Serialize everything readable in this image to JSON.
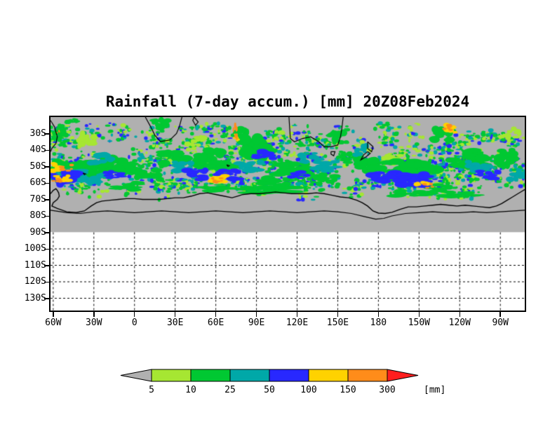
{
  "chart_data": {
    "type": "heatmap",
    "title": "Rainfall (7-day accum.) [mm] 20Z08Feb2024",
    "xlabel": "",
    "ylabel": "",
    "x_tick_labels": [
      "60W",
      "30W",
      "0",
      "30E",
      "60E",
      "90E",
      "120E",
      "150E",
      "180",
      "150W",
      "120W",
      "90W"
    ],
    "x_tick_lons": [
      -60,
      -30,
      0,
      30,
      60,
      90,
      120,
      150,
      180,
      210,
      240,
      270
    ],
    "y_tick_labels": [
      "30S",
      "40S",
      "50S",
      "60S",
      "70S",
      "80S",
      "90S",
      "100S",
      "110S",
      "120S",
      "130S"
    ],
    "y_tick_lats": [
      -30,
      -40,
      -50,
      -60,
      -70,
      -80,
      -90,
      -100,
      -110,
      -120,
      -130
    ],
    "lon_range": [
      -62,
      288
    ],
    "lat_range": [
      -137,
      -20
    ],
    "data_lat_limit": -90,
    "grid": "dashed",
    "background_fill": "#b0b0b0",
    "colorbar": {
      "levels": [
        "5",
        "10",
        "25",
        "50",
        "100",
        "150",
        "300"
      ],
      "unit": "[mm]",
      "palette": [
        "#b0b0b0",
        "#a6e632",
        "#00c832",
        "#00a8a8",
        "#2828ff",
        "#ffd200",
        "#ff8c1a",
        "#ff1e1e"
      ]
    },
    "grid_lats_white_region": [
      -100,
      -110,
      -120,
      -130
    ],
    "speckles": {
      "seed": 12,
      "clusters": 190,
      "band_dots": 380
    },
    "features": [
      [
        -45,
        -52,
        16,
        5,
        2,
        26
      ],
      [
        -48,
        -55,
        12,
        3,
        3,
        14
      ],
      [
        -52,
        -57,
        10,
        4,
        4,
        20
      ],
      [
        -60,
        -50,
        6,
        3,
        5,
        8
      ],
      [
        -50,
        -51,
        4,
        2,
        6,
        5
      ],
      [
        -53,
        -57,
        5,
        2,
        5,
        10
      ],
      [
        -57,
        -58,
        3,
        1.5,
        6,
        6
      ],
      [
        -55,
        -30,
        5,
        3,
        2,
        12
      ],
      [
        -57,
        -28.5,
        1.5,
        1,
        6,
        3
      ],
      [
        -45,
        -23,
        5,
        2,
        2,
        8
      ],
      [
        -35,
        -33,
        6,
        4,
        1,
        14
      ],
      [
        -30,
        -58,
        10,
        3,
        3,
        12
      ],
      [
        -25,
        -45,
        8,
        3,
        3,
        14
      ],
      [
        -12,
        -50,
        12,
        5,
        2,
        22
      ],
      [
        -15,
        -55,
        7,
        2,
        4,
        12
      ],
      [
        -5,
        -62,
        10,
        2.5,
        2,
        16
      ],
      [
        10,
        -55,
        9,
        3,
        2,
        14
      ],
      [
        20,
        -24,
        6,
        3.5,
        2,
        14
      ],
      [
        30,
        -45,
        10,
        4,
        2,
        18
      ],
      [
        35,
        -50,
        8,
        3,
        3,
        12
      ],
      [
        45,
        -35,
        6,
        3,
        1,
        10
      ],
      [
        45,
        -55,
        8,
        3,
        4,
        12
      ],
      [
        55,
        -45,
        10,
        5,
        2,
        20
      ],
      [
        60,
        -63,
        12,
        2,
        2,
        14
      ],
      [
        62,
        -58,
        7,
        2.5,
        5,
        12
      ],
      [
        61,
        -58.5,
        4,
        1.5,
        6,
        8
      ],
      [
        65,
        -50,
        10,
        3,
        2,
        14
      ],
      [
        70,
        -55,
        9,
        3,
        4,
        14
      ],
      [
        74,
        -28,
        1.6,
        4,
        6,
        6
      ],
      [
        76,
        -32,
        2.5,
        2,
        5,
        5
      ],
      [
        78,
        -30,
        5,
        4,
        2,
        12
      ],
      [
        85,
        -50,
        9,
        3,
        3,
        14
      ],
      [
        90,
        -38,
        10,
        6,
        2,
        22
      ],
      [
        95,
        -43,
        8,
        2.5,
        4,
        12
      ],
      [
        100,
        -64,
        20,
        2,
        2,
        20
      ],
      [
        105,
        -60,
        12,
        3,
        2,
        18
      ],
      [
        115,
        -52,
        12,
        4,
        2,
        20
      ],
      [
        120,
        -55,
        7,
        2,
        4,
        10
      ],
      [
        130,
        -45,
        7,
        3,
        3,
        12
      ],
      [
        140,
        -50,
        9,
        3,
        3,
        12
      ],
      [
        140,
        -58,
        8,
        3,
        2,
        12
      ],
      [
        150,
        -32,
        6,
        4,
        2,
        14
      ],
      [
        160,
        -45,
        8,
        3,
        2,
        12
      ],
      [
        168,
        -40,
        5,
        3,
        3,
        10
      ],
      [
        175,
        -50,
        10,
        4,
        2,
        16
      ],
      [
        185,
        -56,
        10,
        3,
        4,
        14
      ],
      [
        190,
        -45,
        8,
        3,
        1,
        12
      ],
      [
        205,
        -52,
        16,
        5,
        2,
        26
      ],
      [
        205,
        -66,
        15,
        2,
        2,
        16
      ],
      [
        207,
        -58,
        12,
        3.5,
        4,
        18
      ],
      [
        212,
        -60,
        5,
        2,
        5,
        8
      ],
      [
        217,
        -62,
        3,
        1.5,
        6,
        5
      ],
      [
        225,
        -63,
        8,
        2,
        2,
        10
      ],
      [
        228,
        -30,
        8,
        4,
        2,
        14
      ],
      [
        232,
        -27,
        5,
        2.5,
        5,
        8
      ],
      [
        232,
        -26,
        3.5,
        2,
        6,
        6
      ],
      [
        240,
        -67,
        12,
        2,
        2,
        12
      ],
      [
        245,
        -45,
        12,
        5,
        2,
        20
      ],
      [
        255,
        -50,
        9,
        3,
        3,
        12
      ],
      [
        262,
        -55,
        9,
        2.5,
        4,
        12
      ],
      [
        275,
        -45,
        8,
        5,
        2,
        16
      ],
      [
        280,
        -30,
        5,
        3,
        1,
        10
      ],
      [
        283,
        -55,
        6,
        3,
        3,
        10
      ]
    ],
    "antarctica_coast": [
      [
        -62,
        -66.5
      ],
      [
        -60,
        -64.5
      ],
      [
        -58,
        -63.5
      ],
      [
        -57,
        -64.5
      ],
      [
        -56,
        -66
      ],
      [
        -55.5,
        -68
      ],
      [
        -57,
        -70
      ],
      [
        -60,
        -72
      ],
      [
        -61,
        -74
      ],
      [
        -57,
        -75.5
      ],
      [
        -50,
        -77.5
      ],
      [
        -43,
        -78
      ],
      [
        -37,
        -77
      ],
      [
        -32,
        -74
      ],
      [
        -28,
        -72
      ],
      [
        -24,
        -71
      ],
      [
        -18,
        -70.5
      ],
      [
        -12,
        -70
      ],
      [
        -6,
        -69.5
      ],
      [
        0,
        -69.5
      ],
      [
        6,
        -70
      ],
      [
        12,
        -70
      ],
      [
        18,
        -70
      ],
      [
        24,
        -69.5
      ],
      [
        30,
        -69
      ],
      [
        36,
        -69
      ],
      [
        42,
        -68
      ],
      [
        48,
        -66.5
      ],
      [
        54,
        -66
      ],
      [
        60,
        -67
      ],
      [
        66,
        -68
      ],
      [
        72,
        -69
      ],
      [
        76,
        -68
      ],
      [
        80,
        -67
      ],
      [
        86,
        -66.5
      ],
      [
        92,
        -66.5
      ],
      [
        98,
        -66
      ],
      [
        104,
        -65.5
      ],
      [
        110,
        -66
      ],
      [
        116,
        -66.5
      ],
      [
        122,
        -66.5
      ],
      [
        128,
        -66.5
      ],
      [
        134,
        -66
      ],
      [
        140,
        -66.5
      ],
      [
        146,
        -67.5
      ],
      [
        152,
        -68.5
      ],
      [
        158,
        -69
      ],
      [
        164,
        -70.5
      ],
      [
        168,
        -72
      ],
      [
        172,
        -74
      ],
      [
        176,
        -77
      ],
      [
        180,
        -78.3
      ],
      [
        185,
        -78.5
      ],
      [
        190,
        -77.8
      ],
      [
        196,
        -76
      ],
      [
        202,
        -74.5
      ],
      [
        208,
        -74.5
      ],
      [
        214,
        -74
      ],
      [
        220,
        -73.5
      ],
      [
        226,
        -73
      ],
      [
        232,
        -73.5
      ],
      [
        238,
        -74
      ],
      [
        244,
        -73.5
      ],
      [
        250,
        -74
      ],
      [
        256,
        -74.5
      ],
      [
        262,
        -75
      ],
      [
        267,
        -74
      ],
      [
        271,
        -72.5
      ],
      [
        275,
        -70.5
      ],
      [
        279,
        -68.5
      ],
      [
        283,
        -66.5
      ],
      [
        286,
        -65
      ],
      [
        288,
        -64
      ]
    ],
    "interior_line": [
      [
        -62,
        -76.5
      ],
      [
        -50,
        -78
      ],
      [
        -40,
        -78.5
      ],
      [
        -30,
        -77.5
      ],
      [
        -20,
        -77
      ],
      [
        -10,
        -77.5
      ],
      [
        0,
        -78
      ],
      [
        10,
        -77.5
      ],
      [
        20,
        -77
      ],
      [
        30,
        -77.5
      ],
      [
        40,
        -78
      ],
      [
        50,
        -77.5
      ],
      [
        60,
        -77
      ],
      [
        70,
        -77.5
      ],
      [
        80,
        -78
      ],
      [
        90,
        -77.5
      ],
      [
        100,
        -77
      ],
      [
        110,
        -77.5
      ],
      [
        120,
        -78
      ],
      [
        130,
        -77.5
      ],
      [
        140,
        -77
      ],
      [
        150,
        -77.5
      ],
      [
        160,
        -78.5
      ],
      [
        170,
        -80.5
      ],
      [
        178,
        -82
      ],
      [
        184,
        -81.5
      ],
      [
        190,
        -80
      ],
      [
        200,
        -78.5
      ],
      [
        210,
        -78
      ],
      [
        220,
        -77.5
      ],
      [
        230,
        -78
      ],
      [
        240,
        -78
      ],
      [
        250,
        -77.5
      ],
      [
        260,
        -78
      ],
      [
        270,
        -77.5
      ],
      [
        280,
        -77
      ],
      [
        288,
        -76.5
      ]
    ],
    "land_outlines": [
      [
        [
          -62,
          -22
        ],
        [
          -59,
          -26
        ],
        [
          -57,
          -32
        ],
        [
          -58,
          -36
        ],
        [
          -61,
          -39
        ],
        [
          -62,
          -41
        ]
      ],
      [
        [
          8,
          -20
        ],
        [
          12,
          -26
        ],
        [
          15,
          -31
        ],
        [
          19,
          -34.8
        ],
        [
          26,
          -34
        ],
        [
          31,
          -30
        ],
        [
          33,
          -26
        ],
        [
          35,
          -20
        ]
      ],
      [
        [
          44,
          -20
        ],
        [
          47,
          -23
        ],
        [
          45,
          -25
        ],
        [
          43,
          -22
        ],
        [
          44,
          -20
        ]
      ],
      [
        [
          114,
          -20
        ],
        [
          115,
          -33
        ],
        [
          118,
          -35
        ],
        [
          124,
          -33
        ],
        [
          130,
          -32
        ],
        [
          136,
          -35
        ],
        [
          140,
          -38
        ],
        [
          145,
          -38
        ],
        [
          150,
          -37
        ],
        [
          152,
          -32
        ],
        [
          153,
          -27
        ],
        [
          154,
          -20
        ]
      ],
      [
        [
          145,
          -41
        ],
        [
          148,
          -41
        ],
        [
          147,
          -43.5
        ],
        [
          145,
          -42.5
        ],
        [
          145,
          -41
        ]
      ],
      [
        [
          172,
          -35
        ],
        [
          176,
          -38
        ],
        [
          175,
          -41
        ],
        [
          172,
          -39
        ],
        [
          172,
          -35
        ]
      ],
      [
        [
          172,
          -41
        ],
        [
          174,
          -42
        ],
        [
          171,
          -44
        ],
        [
          167,
          -46
        ],
        [
          169,
          -43
        ],
        [
          172,
          -41
        ]
      ],
      [
        [
          68,
          -49
        ],
        [
          70,
          -49.5
        ],
        [
          69,
          -50
        ],
        [
          68,
          -49
        ]
      ],
      [
        [
          -38,
          -54
        ],
        [
          -36,
          -54.5
        ],
        [
          -37,
          -55
        ],
        [
          -38,
          -54
        ]
      ]
    ]
  }
}
